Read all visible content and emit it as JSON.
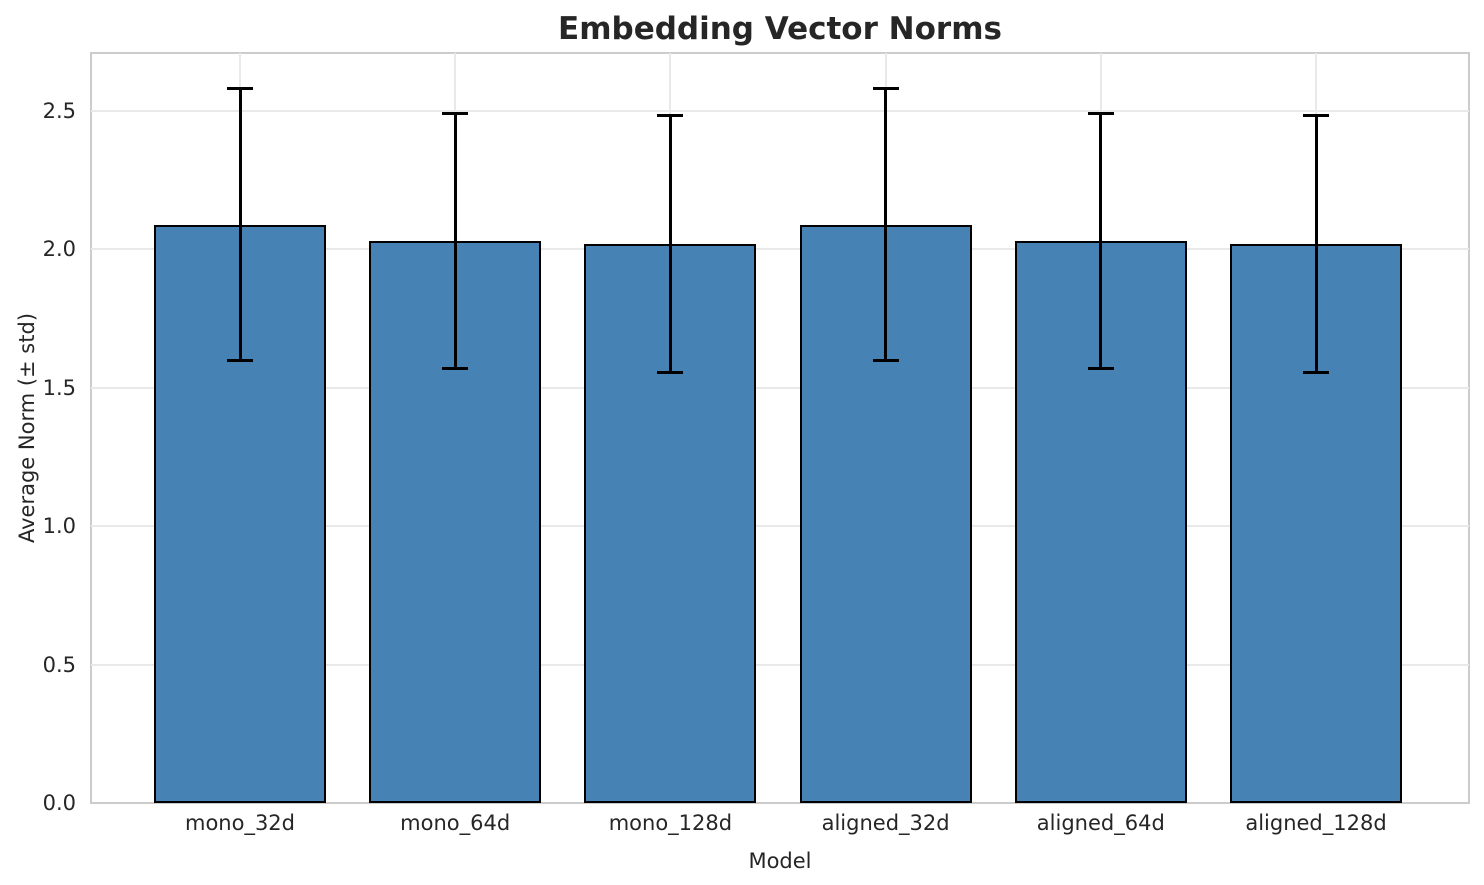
{
  "chart_data": {
    "type": "bar",
    "title": "Embedding Vector Norms",
    "xlabel": "Model",
    "ylabel": "Average Norm (± std)",
    "categories": [
      "mono_32d",
      "mono_64d",
      "mono_128d",
      "aligned_32d",
      "aligned_64d",
      "aligned_128d"
    ],
    "values": [
      2.09,
      2.03,
      2.02,
      2.09,
      2.03,
      2.02
    ],
    "errors_std": [
      0.49,
      0.46,
      0.465,
      0.49,
      0.46,
      0.465
    ],
    "error_whisker_top": [
      2.58,
      2.49,
      2.49,
      2.58,
      2.49,
      2.49
    ],
    "error_whisker_bottom": [
      1.6,
      1.57,
      1.56,
      1.6,
      1.57,
      1.56
    ],
    "ytick_labels": [
      "0.0",
      "0.5",
      "1.0",
      "1.5",
      "2.0",
      "2.5"
    ],
    "ylim": [
      0,
      2.71
    ],
    "grid": "horizontal-and-vertical",
    "legend": "none",
    "bar_width_fraction": 0.8,
    "colors": {
      "bar_fill": "#4682b4",
      "bar_edge": "#000000",
      "error_bar": "#000000",
      "grid": "#e9e9e9",
      "spine": "#cccccc",
      "text": "#262626",
      "background": "#ffffff"
    }
  }
}
